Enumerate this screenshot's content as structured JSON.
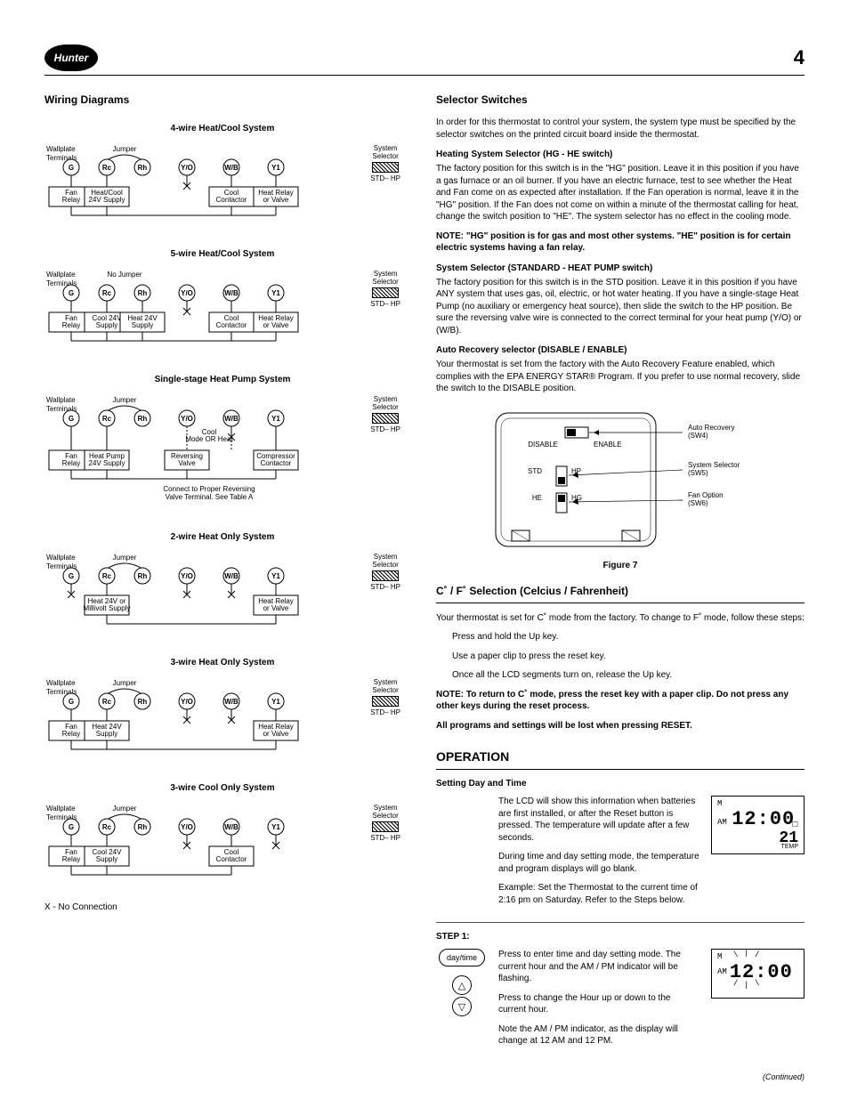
{
  "header": {
    "logo_text": "Hunter",
    "page_number": "4"
  },
  "left": {
    "heading": "Wiring Diagrams",
    "no_connection_note": "X - No Connection",
    "common": {
      "wallplate_label": "Wallplate\nTerminals",
      "jumper": "Jumper",
      "no_jumper": "No Jumper",
      "system_selector": "System\nSelector",
      "std_hp": "STD– HP",
      "terminals": [
        "G",
        "Rc",
        "Rh",
        "Y/O",
        "W/B",
        "Y1"
      ]
    },
    "diagrams": [
      {
        "title": "4-wire Heat/Cool System",
        "jumper_text": "Jumper",
        "boxes": [
          "Fan\nRelay",
          "Heat/Cool\n24V Supply",
          "Cool\nContactor",
          "Heat Relay\nor Valve"
        ],
        "box_under": [
          0,
          1,
          4,
          5
        ],
        "x_terms": [
          3
        ]
      },
      {
        "title": "5-wire Heat/Cool System",
        "jumper_text": "No Jumper",
        "boxes": [
          "Fan\nRelay",
          "Cool 24V\nSupply",
          "Heat 24V\nSupply",
          "Cool\nContactor",
          "Heat Relay\nor Valve"
        ],
        "box_under": [
          0,
          1,
          2,
          4,
          5
        ],
        "x_terms": [
          3
        ]
      },
      {
        "title": "Single-stage Heat Pump System",
        "jumper_text": "Jumper",
        "mode_label": "Cool\nMode  OR  Heat\nMode",
        "boxes": [
          "Fan\nRelay",
          "Heat Pump\n24V Supply",
          "Reversing\nValve",
          "Compressor\nContactor"
        ],
        "box_under": [
          0,
          1,
          3,
          5
        ],
        "x_terms": [
          4
        ],
        "footnote": "Connect to Proper Reversing\nValve Terminal. See Table A"
      },
      {
        "title": "2-wire Heat Only System",
        "jumper_text": "Jumper",
        "boxes": [
          "Heat 24V or\nMillivolt Supply",
          "Heat Relay\nor Valve"
        ],
        "box_under": [
          1,
          5
        ],
        "x_terms": [
          0,
          3,
          4
        ]
      },
      {
        "title": "3-wire Heat Only System",
        "jumper_text": "Jumper",
        "boxes": [
          "Fan\nRelay",
          "Heat 24V\nSupply",
          "Heat Relay\nor Valve"
        ],
        "box_under": [
          0,
          1,
          5
        ],
        "x_terms": [
          3,
          4
        ]
      },
      {
        "title": "3-wire Cool Only System",
        "jumper_text": "Jumper",
        "boxes": [
          "Fan\nRelay",
          "Cool 24V\nSupply",
          "Cool\nContactor"
        ],
        "box_under": [
          0,
          1,
          4
        ],
        "x_terms": [
          3,
          5
        ]
      }
    ]
  },
  "right": {
    "selector_heading": "Selector Switches",
    "selector_intro": "In order for this thermostat to control your system, the system type must be specified by the selector switches on the printed circuit board inside the thermostat.",
    "hg_he_heading": "Heating System Selector (HG - HE switch)",
    "hg_he_body": "The factory position for this switch is in the \"HG\" position. Leave it in this position if you have a gas furnace or an oil burner. If you have an electric furnace, test to see whether the Heat and Fan come on as expected after installation. If the Fan operation is normal, leave it in the \"HG\" position. If the Fan does not come on within a minute of the thermostat calling for heat, change the switch position to \"HE\". The system selector has no effect in the cooling mode.",
    "hg_note": "NOTE: \"HG\" position is for gas and most other systems. \"HE\" position is for certain electric systems having a fan relay.",
    "sys_sel_heading": "System Selector (STANDARD - HEAT PUMP switch)",
    "sys_sel_body": "The factory position for this switch is in the STD position. Leave it in this position if you have ANY system that uses gas, oil, electric, or hot water heating. If you have a single-stage Heat Pump (no auxiliary or emergency heat source), then slide the switch to the HP position. Be sure the reversing valve wire is connected to the correct terminal for your heat pump (Y/O) or (W/B).",
    "auto_rec_heading": "Auto Recovery selector (DISABLE / ENABLE)",
    "auto_rec_body": "Your thermostat is set from the factory with the Auto Recovery Feature enabled, which complies with the EPA ENERGY STAR® Program. If you prefer to use normal recovery, slide the switch to the DISABLE position.",
    "figure7": "Figure 7",
    "fig7_labels": {
      "auto_recovery": "Auto Recovery\n(SW4)",
      "disable": "DISABLE",
      "enable": "ENABLE",
      "system_selector": "System Selector\n(SW5)",
      "fan_option": "Fan Option\n(SW6)",
      "std": "STD",
      "hp": "HP",
      "he": "HE",
      "hg": "HG"
    },
    "cf_heading": "C˚ / F˚ Selection (Celcius / Fahrenheit)",
    "cf_intro": "Your thermostat is set for C˚ mode from the factory. To change to F˚ mode, follow these steps:",
    "cf_steps": [
      "Press and hold the Up key.",
      "Use a paper clip to press the reset key.",
      "Once all the LCD segments turn on, release the Up key."
    ],
    "cf_note": "NOTE: To return to C˚ mode, press the reset key with a paper clip. Do not press any other keys during the reset process.",
    "cf_warn": "All programs and settings will be lost when pressing RESET.",
    "operation_heading": "OPERATION",
    "set_dt_heading": "Setting Day and Time",
    "set_dt_p1": "The LCD will show this information when batteries are first installed, or after the Reset button is pressed. The temperature will update after a few seconds.",
    "set_dt_p2": "During time and day setting mode, the temperature and program displays will go blank.",
    "set_dt_p3": "Example: Set the Thermostat to the current time of 2:16 pm on Saturday. Refer to the Steps below.",
    "step1_heading": "STEP 1:",
    "day_time_btn": "day/time",
    "step1_p1": "Press to enter time and day setting mode. The current hour and the AM / PM indicator will be flashing.",
    "step1_p2": "Press to change the Hour up or down to the current hour.",
    "step1_p3": "Note the AM / PM indicator, as the display will change at 12 AM and 12 PM.",
    "lcd": {
      "day": "M",
      "ampm": "AM",
      "time": "12:00",
      "temp_label": "TEMP",
      "temp": "21",
      "box_icon": "☐"
    },
    "continued": "(Continued)"
  }
}
